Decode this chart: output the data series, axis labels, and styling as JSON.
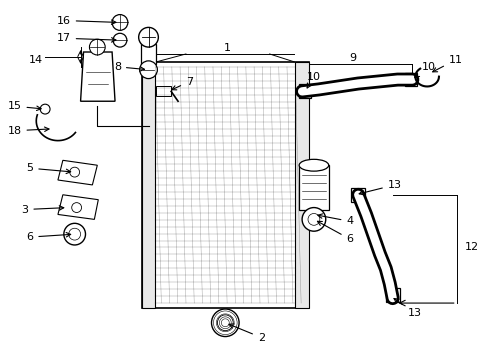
{
  "bg_color": "#ffffff",
  "line_color": "#000000",
  "label_color": "#000000",
  "figsize": [
    4.9,
    3.6
  ],
  "dpi": 100,
  "label_fontsize": 8.0
}
